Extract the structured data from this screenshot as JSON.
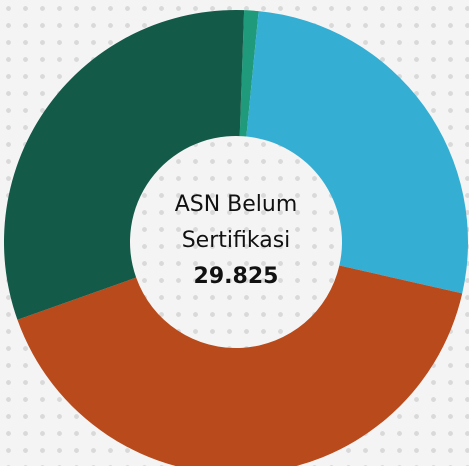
{
  "chart_data": {
    "type": "donut",
    "values": [
      1,
      27,
      41,
      31
    ],
    "colors": [
      "#1f9b7b",
      "#35aed3",
      "#b94a1b",
      "#145a48"
    ],
    "center_text": [
      "ASN Belum",
      "Sertifikasi"
    ],
    "center_value": "29.825"
  }
}
